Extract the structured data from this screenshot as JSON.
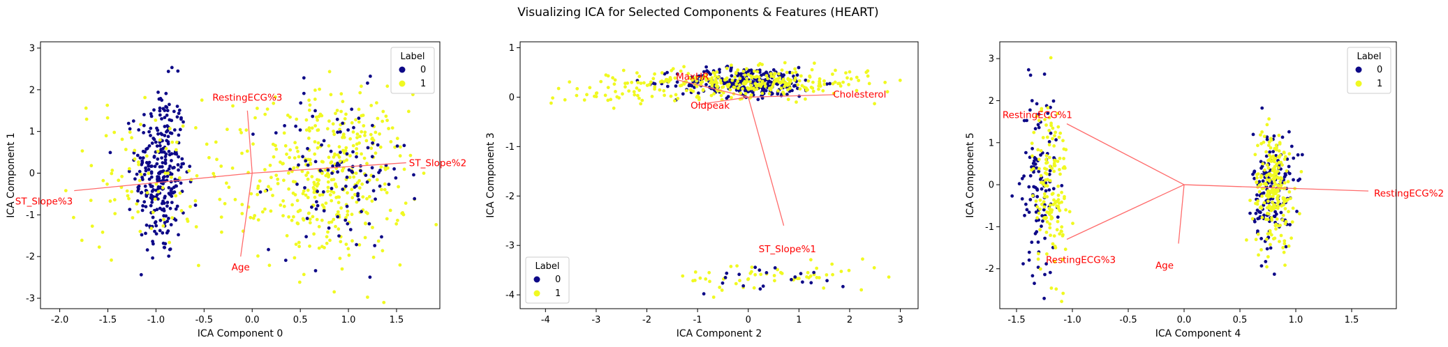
{
  "title": "Visualizing ICA for Selected Components & Features (HEART)",
  "colors": {
    "label_0": "#0d0887",
    "label_1": "#f0f921",
    "loading": "#ff0000",
    "loading_line": "#ff6b6b"
  },
  "legend": {
    "title": "Label",
    "entries": [
      "0",
      "1"
    ]
  },
  "chart_data": [
    {
      "type": "scatter",
      "xlabel": "ICA Component 0",
      "ylabel": "ICA Component 1",
      "xlim": [
        -2.2,
        1.95
      ],
      "ylim": [
        -3.25,
        3.15
      ],
      "xticks": [
        "-2.0",
        "-1.5",
        "-1.0",
        "-0.5",
        "0.0",
        "0.5",
        "1.0",
        "1.5"
      ],
      "yticks": [
        "-3",
        "-2",
        "-1",
        "0",
        "1",
        "2",
        "3"
      ],
      "legend_position": "top-right",
      "clusters": [
        {
          "label": "0",
          "cx": -0.95,
          "cy": 0.0,
          "sx": 0.13,
          "sy": 1.05,
          "n": 300
        },
        {
          "label": "1",
          "cx": -1.2,
          "cy": 0.0,
          "sx": 0.35,
          "sy": 0.9,
          "n": 70
        },
        {
          "label": "1",
          "cx": 0.85,
          "cy": -0.1,
          "sx": 0.38,
          "sy": 1.0,
          "n": 380
        },
        {
          "label": "0",
          "cx": 0.9,
          "cy": 0.0,
          "sx": 0.35,
          "sy": 0.95,
          "n": 110
        },
        {
          "label": "1",
          "cx": -0.2,
          "cy": 0.0,
          "sx": 0.5,
          "sy": 1.0,
          "n": 60
        }
      ],
      "loadings": [
        {
          "name": "RestingECG%3",
          "x": -0.05,
          "y": 1.5
        },
        {
          "name": "Age",
          "x": -0.12,
          "y": -2.0
        },
        {
          "name": "ST_Slope%2",
          "x": 1.6,
          "y": 0.25
        },
        {
          "name": "ST_Slope%3",
          "x": -1.85,
          "y": -0.42
        }
      ]
    },
    {
      "type": "scatter",
      "xlabel": "ICA Component 2",
      "ylabel": "ICA Component 3",
      "xlim": [
        -4.5,
        3.35
      ],
      "ylim": [
        -4.28,
        1.12
      ],
      "xticks": [
        "-4",
        "-3",
        "-2",
        "-1",
        "0",
        "1",
        "2",
        "3"
      ],
      "yticks": [
        "-4",
        "-3",
        "-2",
        "-1",
        "0",
        "1"
      ],
      "legend_position": "bottom-left",
      "clusters": [
        {
          "label": "0",
          "cx": 0.0,
          "cy": 0.3,
          "sx": 0.7,
          "sy": 0.15,
          "n": 280
        },
        {
          "label": "1",
          "cx": 0.0,
          "cy": 0.3,
          "sx": 1.2,
          "sy": 0.15,
          "n": 300
        },
        {
          "label": "1",
          "cx": -2.5,
          "cy": 0.1,
          "sx": 0.7,
          "sy": 0.15,
          "n": 40
        },
        {
          "label": "1",
          "cx": 0.6,
          "cy": -3.65,
          "sx": 1.1,
          "sy": 0.15,
          "n": 55
        },
        {
          "label": "0",
          "cx": 0.4,
          "cy": -3.65,
          "sx": 0.8,
          "sy": 0.15,
          "n": 20
        }
      ],
      "loadings": [
        {
          "name": "MaxHR",
          "x": -1.4,
          "y": 0.35
        },
        {
          "name": "Cholesterol",
          "x": 1.7,
          "y": 0.05
        },
        {
          "name": "Oldpeak",
          "x": -1.0,
          "y": -0.15
        },
        {
          "name": "ST_Slope%1",
          "x": 0.7,
          "y": -2.6
        }
      ]
    },
    {
      "type": "scatter",
      "xlabel": "ICA Component 4",
      "ylabel": "ICA Component 5",
      "xlim": [
        -1.65,
        1.9
      ],
      "ylim": [
        -2.95,
        3.4
      ],
      "xticks": [
        "-1.5",
        "-1.0",
        "-0.5",
        "0.0",
        "0.5",
        "1.0",
        "1.5"
      ],
      "yticks": [
        "-2",
        "-1",
        "0",
        "1",
        "2",
        "3"
      ],
      "legend_position": "top-right",
      "clusters": [
        {
          "label": "0",
          "cx": -1.3,
          "cy": 0.0,
          "sx": 0.08,
          "sy": 1.1,
          "n": 110
        },
        {
          "label": "1",
          "cx": -1.2,
          "cy": 0.0,
          "sx": 0.08,
          "sy": 1.05,
          "n": 150
        },
        {
          "label": "0",
          "cx": 0.8,
          "cy": -0.1,
          "sx": 0.09,
          "sy": 0.7,
          "n": 160
        },
        {
          "label": "1",
          "cx": 0.8,
          "cy": -0.1,
          "sx": 0.09,
          "sy": 0.7,
          "n": 220
        }
      ],
      "loadings": [
        {
          "name": "RestingECG%1",
          "x": -1.05,
          "y": 1.45
        },
        {
          "name": "RestingECG%3",
          "x": -1.05,
          "y": -1.3
        },
        {
          "name": "Age",
          "x": -0.05,
          "y": -1.4
        },
        {
          "name": "RestingECG%2",
          "x": 1.65,
          "y": -0.15
        }
      ]
    }
  ]
}
